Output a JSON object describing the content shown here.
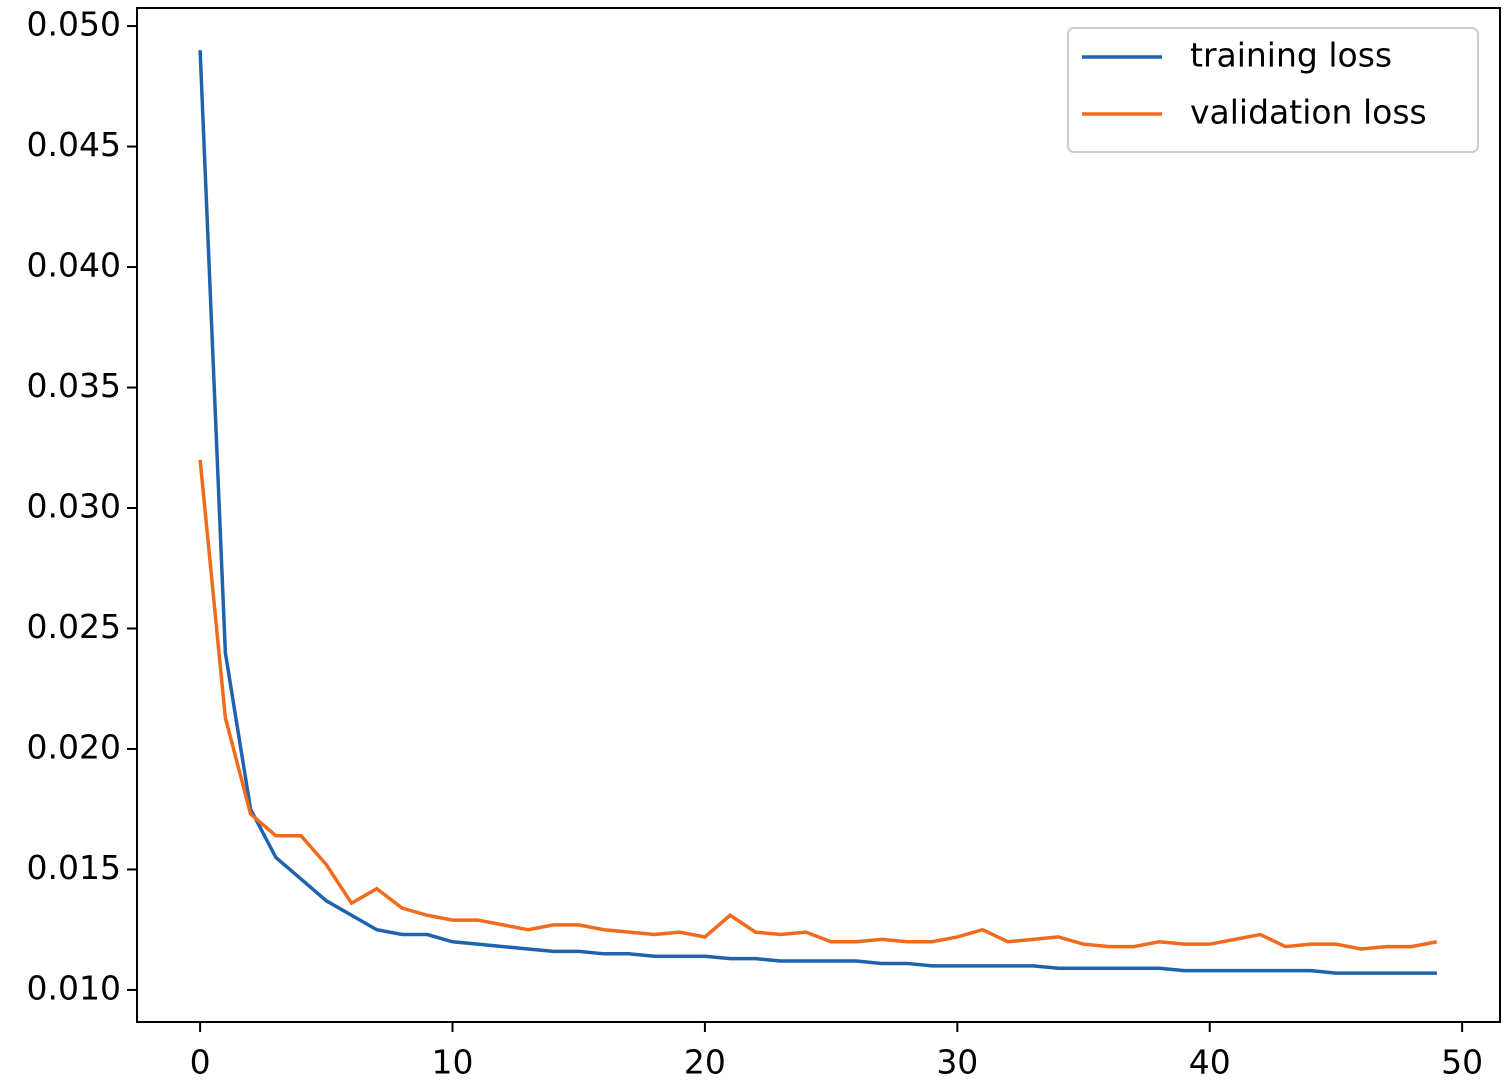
{
  "chart_data": {
    "type": "line",
    "x": [
      0,
      1,
      2,
      3,
      4,
      5,
      6,
      7,
      8,
      9,
      10,
      11,
      12,
      13,
      14,
      15,
      16,
      17,
      18,
      19,
      20,
      21,
      22,
      23,
      24,
      25,
      26,
      27,
      28,
      29,
      30,
      31,
      32,
      33,
      34,
      35,
      36,
      37,
      38,
      39,
      40,
      41,
      42,
      43,
      44,
      45,
      46,
      47,
      48,
      49
    ],
    "series": [
      {
        "name": "training loss",
        "color": "#1f63ae",
        "values": [
          0.049,
          0.024,
          0.0175,
          0.0155,
          0.0146,
          0.0137,
          0.0131,
          0.0125,
          0.0123,
          0.0123,
          0.012,
          0.0119,
          0.0118,
          0.0117,
          0.0116,
          0.0116,
          0.0115,
          0.0115,
          0.0114,
          0.0114,
          0.0114,
          0.0113,
          0.0113,
          0.0112,
          0.0112,
          0.0112,
          0.0112,
          0.0111,
          0.0111,
          0.011,
          0.011,
          0.011,
          0.011,
          0.011,
          0.0109,
          0.0109,
          0.0109,
          0.0109,
          0.0109,
          0.0108,
          0.0108,
          0.0108,
          0.0108,
          0.0108,
          0.0108,
          0.0107,
          0.0107,
          0.0107,
          0.0107,
          0.0107
        ]
      },
      {
        "name": "validation loss",
        "color": "#f26b1d",
        "values": [
          0.032,
          0.0213,
          0.0173,
          0.0164,
          0.0164,
          0.0152,
          0.0136,
          0.0142,
          0.0134,
          0.0131,
          0.0129,
          0.0129,
          0.0127,
          0.0125,
          0.0127,
          0.0127,
          0.0125,
          0.0124,
          0.0123,
          0.0124,
          0.0122,
          0.0131,
          0.0124,
          0.0123,
          0.0124,
          0.012,
          0.012,
          0.0121,
          0.012,
          0.012,
          0.0122,
          0.0125,
          0.012,
          0.0121,
          0.0122,
          0.0119,
          0.0118,
          0.0118,
          0.012,
          0.0119,
          0.0119,
          0.0121,
          0.0123,
          0.0118,
          0.0119,
          0.0119,
          0.0117,
          0.0118,
          0.0118,
          0.012
        ]
      }
    ],
    "xlim": [
      -2.5,
      51.5
    ],
    "xticks": [
      0,
      10,
      20,
      30,
      40,
      50
    ],
    "ylim": [
      0.00867,
      0.05075
    ],
    "yticks": [
      {
        "value": 0.01,
        "label": "0.010"
      },
      {
        "value": 0.015,
        "label": "0.015"
      },
      {
        "value": 0.02,
        "label": "0.020"
      },
      {
        "value": 0.025,
        "label": "0.025"
      },
      {
        "value": 0.03,
        "label": "0.030"
      },
      {
        "value": 0.035,
        "label": "0.035"
      },
      {
        "value": 0.04,
        "label": "0.040"
      },
      {
        "value": 0.045,
        "label": "0.045"
      },
      {
        "value": 0.05,
        "label": "0.050"
      }
    ],
    "legend": "upper right"
  }
}
